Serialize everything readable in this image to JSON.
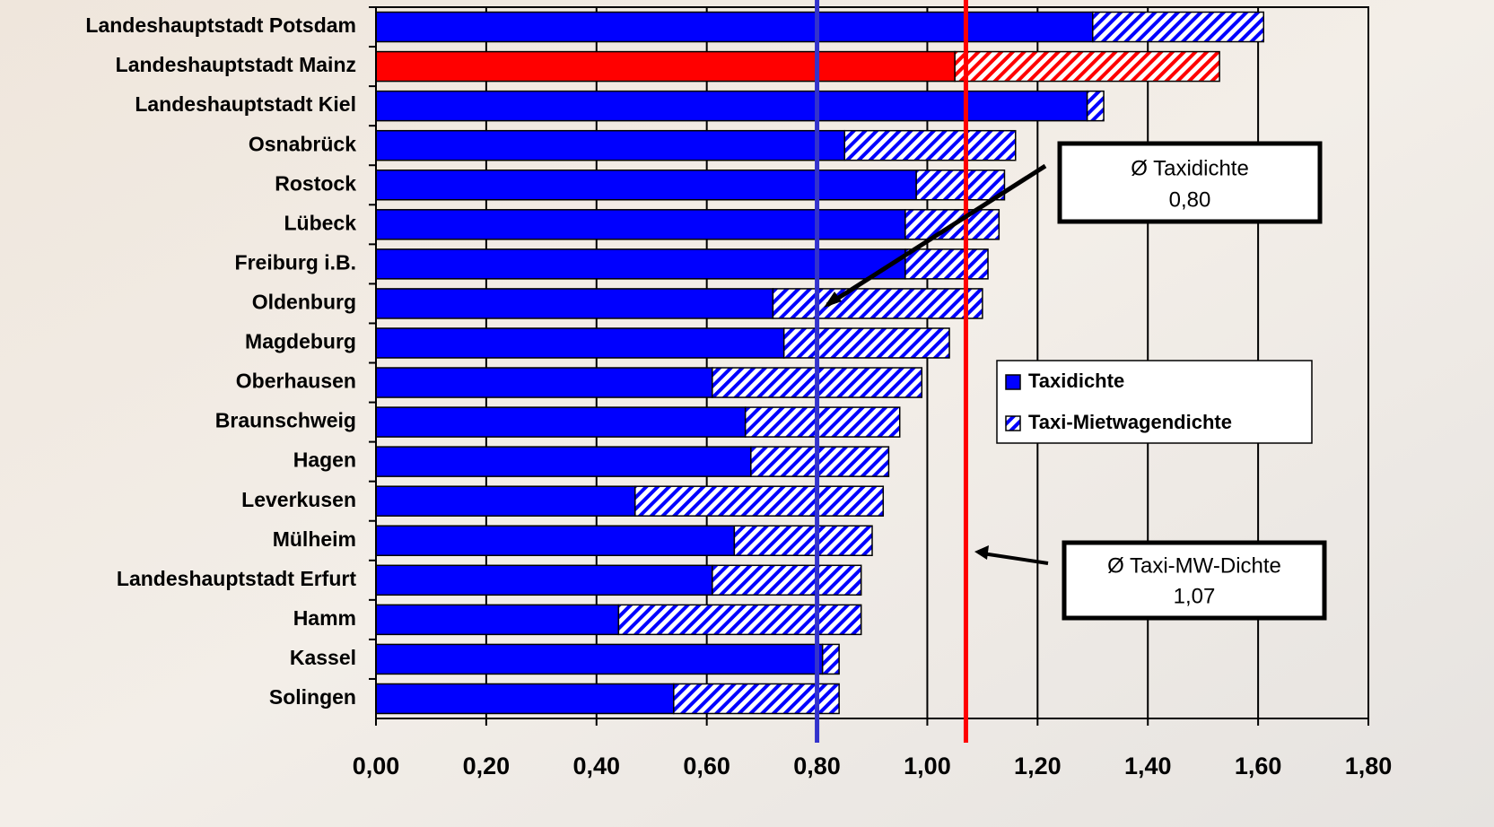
{
  "chart_data": {
    "type": "stacked-barh",
    "categories": [
      "Landeshauptstadt Potsdam",
      "Landeshauptstadt Mainz",
      "Landeshauptstadt Kiel",
      "Osnabrück",
      "Rostock",
      "Lübeck",
      "Freiburg i.B.",
      "Oldenburg",
      "Magdeburg",
      "Oberhausen",
      "Braunschweig",
      "Hagen",
      "Leverkusen",
      "Mülheim",
      "Landeshauptstadt Erfurt",
      "Hamm",
      "Kassel",
      "Solingen"
    ],
    "series": [
      {
        "name": "Taxidichte",
        "color": "#0000ff",
        "fill": "solid",
        "colors": [
          "#0000ff",
          "#ff0000",
          "#0000ff",
          "#0000ff",
          "#0000ff",
          "#0000ff",
          "#0000ff",
          "#0000ff",
          "#0000ff",
          "#0000ff",
          "#0000ff",
          "#0000ff",
          "#0000ff",
          "#0000ff",
          "#0000ff",
          "#0000ff",
          "#0000ff",
          "#0000ff"
        ],
        "values": [
          1.3,
          1.05,
          1.29,
          0.85,
          0.98,
          0.96,
          0.96,
          0.72,
          0.74,
          0.61,
          0.67,
          0.68,
          0.47,
          0.65,
          0.61,
          0.44,
          0.81,
          0.54
        ]
      },
      {
        "name": "Taxi-Mietwagendichte",
        "color": "#0000ff",
        "fill": "hatch",
        "colors": [
          "#0000ff",
          "#ff0000",
          "#0000ff",
          "#0000ff",
          "#0000ff",
          "#0000ff",
          "#0000ff",
          "#0000ff",
          "#0000ff",
          "#0000ff",
          "#0000ff",
          "#0000ff",
          "#0000ff",
          "#0000ff",
          "#0000ff",
          "#0000ff",
          "#0000ff",
          "#0000ff"
        ],
        "values": [
          0.31,
          0.48,
          0.03,
          0.31,
          0.16,
          0.17,
          0.15,
          0.38,
          0.3,
          0.38,
          0.28,
          0.25,
          0.45,
          0.25,
          0.27,
          0.44,
          0.03,
          0.3
        ]
      }
    ],
    "xlim": [
      0,
      1.8
    ],
    "xticks": [
      {
        "value": 0,
        "label": "0,00"
      },
      {
        "value": 0.2,
        "label": "0,20"
      },
      {
        "value": 0.4,
        "label": "0,40"
      },
      {
        "value": 0.6,
        "label": "0,60"
      },
      {
        "value": 0.8,
        "label": "0,80"
      },
      {
        "value": 1.0,
        "label": "1,00"
      },
      {
        "value": 1.2,
        "label": "1,20"
      },
      {
        "value": 1.4,
        "label": "1,40"
      },
      {
        "value": 1.6,
        "label": "1,60"
      },
      {
        "value": 1.8,
        "label": "1,80"
      }
    ],
    "grid": true,
    "reference_lines": [
      {
        "value": 0.8,
        "color": "#3333cc",
        "label": "Ø Taxidichte",
        "value_label": "0,80"
      },
      {
        "value": 1.07,
        "color": "#ff0000",
        "label": "Ø Taxi-MW-Dichte",
        "value_label": "1,07"
      }
    ]
  }
}
